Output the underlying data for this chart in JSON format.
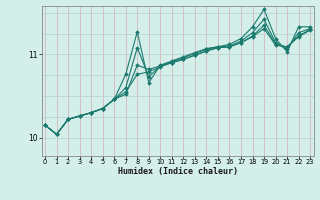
{
  "xlabel": "Humidex (Indice chaleur)",
  "bg_color": "#d4eeea",
  "line_color": "#1a7a6e",
  "vgrid_color": "#d4b8b8",
  "hgrid_color": "#b8d8d4",
  "xlim": [
    -0.3,
    23.3
  ],
  "ylim": [
    9.78,
    11.58
  ],
  "yticks": [
    10,
    11
  ],
  "xticks": [
    0,
    1,
    2,
    3,
    4,
    5,
    6,
    7,
    8,
    9,
    10,
    11,
    12,
    13,
    14,
    15,
    16,
    17,
    18,
    19,
    20,
    21,
    22,
    23
  ],
  "lines": [
    [
      10.15,
      10.04,
      10.22,
      10.26,
      10.3,
      10.35,
      10.46,
      10.52,
      10.87,
      10.82,
      10.86,
      10.9,
      10.94,
      10.99,
      11.04,
      11.08,
      11.09,
      11.14,
      11.21,
      11.31,
      11.11,
      11.09,
      11.21,
      11.29
    ],
    [
      10.15,
      10.04,
      10.22,
      10.26,
      10.3,
      10.35,
      10.46,
      10.76,
      11.27,
      10.66,
      10.87,
      10.92,
      10.97,
      11.02,
      11.07,
      11.09,
      11.12,
      11.19,
      11.33,
      11.54,
      11.19,
      11.03,
      11.33,
      11.33
    ],
    [
      10.15,
      10.04,
      10.22,
      10.26,
      10.3,
      10.35,
      10.46,
      10.6,
      11.08,
      10.73,
      10.86,
      10.91,
      10.96,
      11.01,
      11.06,
      11.09,
      11.1,
      11.16,
      11.26,
      11.42,
      11.14,
      11.06,
      11.26,
      11.31
    ],
    [
      10.15,
      10.04,
      10.22,
      10.26,
      10.3,
      10.35,
      10.46,
      10.55,
      10.76,
      10.79,
      10.85,
      10.9,
      10.94,
      10.99,
      11.04,
      11.08,
      11.09,
      11.14,
      11.22,
      11.35,
      11.12,
      11.09,
      11.22,
      11.3
    ]
  ]
}
